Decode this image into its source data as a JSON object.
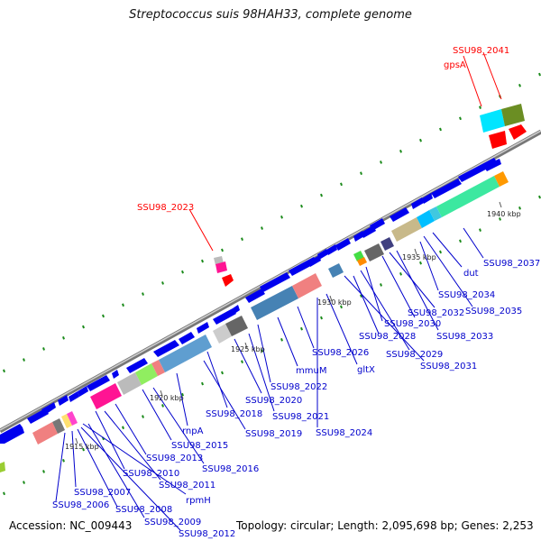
{
  "title": "Streptococcus suis 98HAH33, complete genome",
  "footer": {
    "accession": "Accession: NC_009443",
    "topology": "Topology: circular; Length: 2,095,698 bp; Genes: 2,253"
  },
  "scale_ticks": [
    "1915 kbp",
    "1920 kbp",
    "1925 kbp",
    "1930 kbp",
    "1935 kbp",
    "1940 kbp"
  ],
  "gene_labels": [
    {
      "text": "SSU98_2041",
      "color": "#ff0000"
    },
    {
      "text": "gpsA",
      "color": "#ff0000"
    },
    {
      "text": "SSU98_2023",
      "color": "#ff0000"
    },
    {
      "text": "SSU98_2037",
      "color": "#0000cc"
    },
    {
      "text": "dut",
      "color": "#0000cc"
    },
    {
      "text": "SSU98_2034",
      "color": "#0000cc"
    },
    {
      "text": "SSU98_2035",
      "color": "#0000cc"
    },
    {
      "text": "SSU98_2032",
      "color": "#0000cc"
    },
    {
      "text": "SSU98_2030",
      "color": "#0000cc"
    },
    {
      "text": "SSU98_2033",
      "color": "#0000cc"
    },
    {
      "text": "SSU98_2028",
      "color": "#0000cc"
    },
    {
      "text": "SSU98_2029",
      "color": "#0000cc"
    },
    {
      "text": "SSU98_2031",
      "color": "#0000cc"
    },
    {
      "text": "SSU98_2026",
      "color": "#0000cc"
    },
    {
      "text": "gltX",
      "color": "#0000cc"
    },
    {
      "text": "mmuM",
      "color": "#0000cc"
    },
    {
      "text": "SSU98_2022",
      "color": "#0000cc"
    },
    {
      "text": "SSU98_2020",
      "color": "#0000cc"
    },
    {
      "text": "SSU98_2021",
      "color": "#0000cc"
    },
    {
      "text": "SSU98_2024",
      "color": "#0000cc"
    },
    {
      "text": "SSU98_2018",
      "color": "#0000cc"
    },
    {
      "text": "SSU98_2019",
      "color": "#0000cc"
    },
    {
      "text": "rnpA",
      "color": "#0000cc"
    },
    {
      "text": "SSU98_2015",
      "color": "#0000cc"
    },
    {
      "text": "SSU98_2016",
      "color": "#0000cc"
    },
    {
      "text": "SSU98_2013",
      "color": "#0000cc"
    },
    {
      "text": "SSU98_2010",
      "color": "#0000cc"
    },
    {
      "text": "SSU98_2011",
      "color": "#0000cc"
    },
    {
      "text": "rpmH",
      "color": "#0000cc"
    },
    {
      "text": "SSU98_2007",
      "color": "#0000cc"
    },
    {
      "text": "SSU98_2006",
      "color": "#0000cc"
    },
    {
      "text": "SSU98_2008",
      "color": "#0000cc"
    },
    {
      "text": "SSU98_2009",
      "color": "#0000cc"
    },
    {
      "text": "SSU98_2012",
      "color": "#0000cc"
    }
  ],
  "colors": {
    "backbone": "#888888",
    "gene_fwd": "#0000ee",
    "label_red": "#ff0000",
    "label_blue": "#0000cc",
    "tick_mark": "#1a8a1a"
  }
}
